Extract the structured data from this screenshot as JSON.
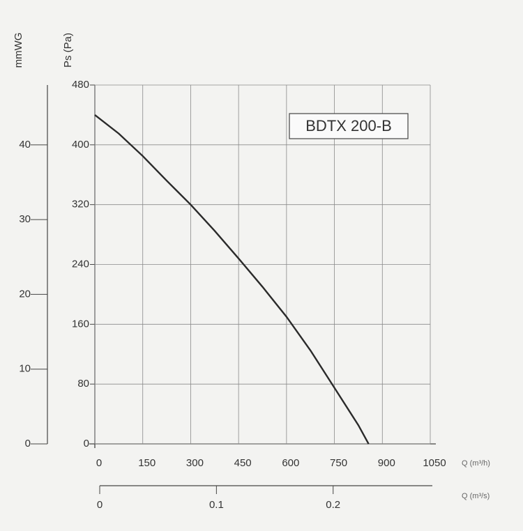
{
  "chart_data": {
    "type": "line",
    "y_label": "Ps (Pa)",
    "y2_label": "mmWG",
    "x_label": "Q (m³/h)",
    "x2_label": "Q (m³/s)",
    "x": [
      0,
      75,
      150,
      225,
      300,
      375,
      450,
      525,
      600,
      675,
      750,
      825,
      857
    ],
    "series": [
      {
        "name": "BDTX 200-B",
        "color": "#2a2a2a",
        "values": [
          440,
          415,
          385,
          352,
          320,
          285,
          248,
          210,
          170,
          125,
          75,
          25,
          0
        ]
      }
    ],
    "xlim": [
      0,
      1050
    ],
    "xticks": [
      0,
      150,
      300,
      450,
      600,
      750,
      900,
      1050
    ],
    "ylim": [
      0,
      480
    ],
    "yticks": [
      0,
      80,
      160,
      240,
      320,
      400,
      480
    ],
    "y2lim": [
      0,
      48
    ],
    "y2ticks": [
      0,
      10,
      20,
      30,
      40
    ],
    "x2lim": [
      0,
      0.285
    ],
    "x2ticks": [
      0,
      0.1,
      0.2
    ],
    "grid": true
  }
}
